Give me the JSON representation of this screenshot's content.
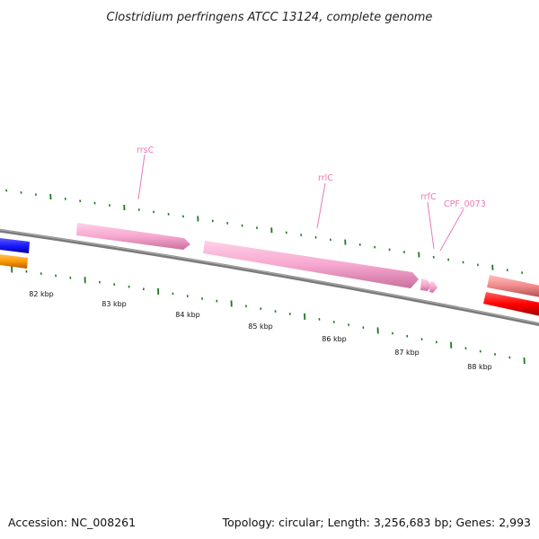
{
  "title": "Clostridium perfringens ATCC 13124, complete genome",
  "footer": {
    "accession": "Accession: NC_008261",
    "summary": "Topology: circular; Length: 3,256,683 bp; Genes: 2,993"
  },
  "scale": {
    "unit": "kbp",
    "labels": [
      "82 kbp",
      "83 kbp",
      "84 kbp",
      "85 kbp",
      "86 kbp",
      "87 kbp",
      "88 kbp"
    ]
  },
  "features": [
    {
      "label": "rrsC",
      "type": "rRNA",
      "strand": "+",
      "color": "#f7a8d0"
    },
    {
      "label": "rrlC",
      "type": "rRNA",
      "strand": "+",
      "color": "#f7a8d0"
    },
    {
      "label": "rrfC",
      "type": "rRNA",
      "strand": "+",
      "color": "#f7a8d0"
    },
    {
      "label": "CPF_0073",
      "type": "rRNA",
      "strand": "+",
      "color": "#f7a8d0"
    }
  ],
  "unlabeled_features": [
    {
      "type": "CDS",
      "strand": "+",
      "color": "#1a1aff"
    },
    {
      "type": "CDS",
      "strand": "-",
      "color": "#ff9900"
    },
    {
      "type": "CDS",
      "strand": "+",
      "color": "#f08a8a"
    },
    {
      "type": "CDS",
      "strand": "-",
      "color": "#ff0000"
    }
  ],
  "colors": {
    "backbone": "#7a7a7a",
    "ticks": "#1a7a1a",
    "rRNA": "#f7a8d0",
    "rRNA_label": "#e87ab5"
  }
}
